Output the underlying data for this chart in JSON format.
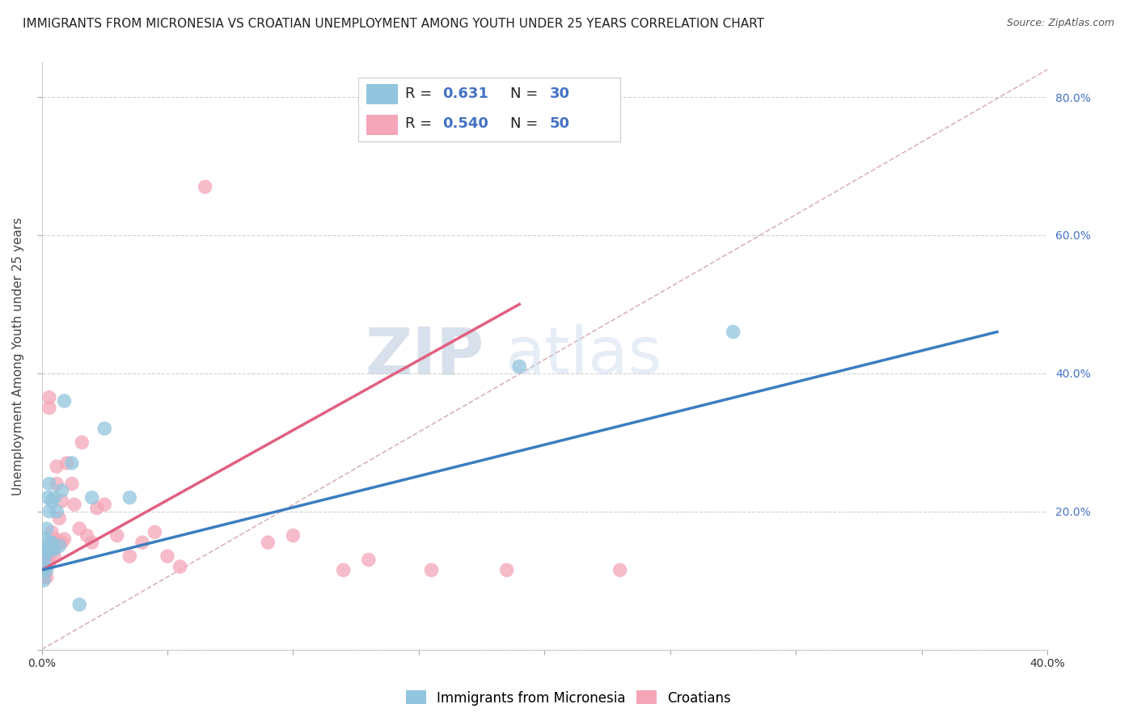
{
  "title": "IMMIGRANTS FROM MICRONESIA VS CROATIAN UNEMPLOYMENT AMONG YOUTH UNDER 25 YEARS CORRELATION CHART",
  "source": "Source: ZipAtlas.com",
  "ylabel": "Unemployment Among Youth under 25 years",
  "xlim": [
    0.0,
    0.4
  ],
  "ylim": [
    0.0,
    0.85
  ],
  "xticks": [
    0.0,
    0.05,
    0.1,
    0.15,
    0.2,
    0.25,
    0.3,
    0.35,
    0.4
  ],
  "yticks": [
    0.0,
    0.2,
    0.4,
    0.6,
    0.8
  ],
  "ytick_labels_right": [
    "",
    "20.0%",
    "40.0%",
    "60.0%",
    "80.0%"
  ],
  "xtick_labels_show": [
    "0.0%",
    "",
    "",
    "",
    "",
    "",
    "",
    "",
    "40.0%"
  ],
  "legend_labels": [
    "Immigrants from Micronesia",
    "Croatians"
  ],
  "blue_R": "0.631",
  "blue_N": "30",
  "pink_R": "0.540",
  "pink_N": "50",
  "blue_color": "#92c5de",
  "pink_color": "#f4a6b8",
  "blue_line_color": "#3a7ebf",
  "pink_line_color": "#e06080",
  "diag_line_color": "#d0a0b0",
  "grid_color": "#d0d0d0",
  "background_color": "#ffffff",
  "blue_scatter_x": [
    0.0005,
    0.0008,
    0.001,
    0.0012,
    0.0015,
    0.0015,
    0.002,
    0.002,
    0.002,
    0.0025,
    0.0025,
    0.003,
    0.003,
    0.003,
    0.0035,
    0.004,
    0.004,
    0.005,
    0.005,
    0.006,
    0.007,
    0.008,
    0.009,
    0.012,
    0.015,
    0.02,
    0.025,
    0.035,
    0.19,
    0.275
  ],
  "blue_scatter_y": [
    0.115,
    0.1,
    0.13,
    0.12,
    0.145,
    0.16,
    0.115,
    0.14,
    0.175,
    0.22,
    0.145,
    0.155,
    0.2,
    0.24,
    0.145,
    0.155,
    0.215,
    0.22,
    0.145,
    0.2,
    0.15,
    0.23,
    0.36,
    0.27,
    0.065,
    0.22,
    0.32,
    0.22,
    0.41,
    0.46
  ],
  "pink_scatter_x": [
    0.0003,
    0.0005,
    0.0008,
    0.001,
    0.001,
    0.0012,
    0.0015,
    0.0015,
    0.002,
    0.002,
    0.002,
    0.0025,
    0.003,
    0.003,
    0.003,
    0.0035,
    0.004,
    0.004,
    0.005,
    0.005,
    0.006,
    0.006,
    0.007,
    0.007,
    0.008,
    0.008,
    0.009,
    0.01,
    0.012,
    0.013,
    0.015,
    0.016,
    0.018,
    0.02,
    0.022,
    0.025,
    0.03,
    0.035,
    0.04,
    0.045,
    0.05,
    0.055,
    0.065,
    0.09,
    0.1,
    0.12,
    0.13,
    0.155,
    0.185,
    0.23
  ],
  "pink_scatter_y": [
    0.115,
    0.12,
    0.105,
    0.13,
    0.105,
    0.12,
    0.115,
    0.145,
    0.13,
    0.145,
    0.105,
    0.135,
    0.35,
    0.365,
    0.125,
    0.14,
    0.145,
    0.17,
    0.135,
    0.16,
    0.24,
    0.265,
    0.155,
    0.19,
    0.155,
    0.215,
    0.16,
    0.27,
    0.24,
    0.21,
    0.175,
    0.3,
    0.165,
    0.155,
    0.205,
    0.21,
    0.165,
    0.135,
    0.155,
    0.17,
    0.135,
    0.12,
    0.67,
    0.155,
    0.165,
    0.115,
    0.13,
    0.115,
    0.115,
    0.115
  ],
  "blue_trend_x": [
    0.0,
    0.38
  ],
  "blue_trend_y": [
    0.115,
    0.46
  ],
  "pink_trend_x": [
    0.0,
    0.19
  ],
  "pink_trend_y": [
    0.115,
    0.5
  ],
  "diag_line_x": [
    0.0,
    0.4
  ],
  "diag_line_y": [
    0.0,
    0.84
  ],
  "watermark_zip": "ZIP",
  "watermark_atlas": "atlas",
  "title_fontsize": 11,
  "axis_label_fontsize": 11,
  "tick_fontsize": 10,
  "legend_fontsize": 12,
  "r_n_fontsize": 13
}
